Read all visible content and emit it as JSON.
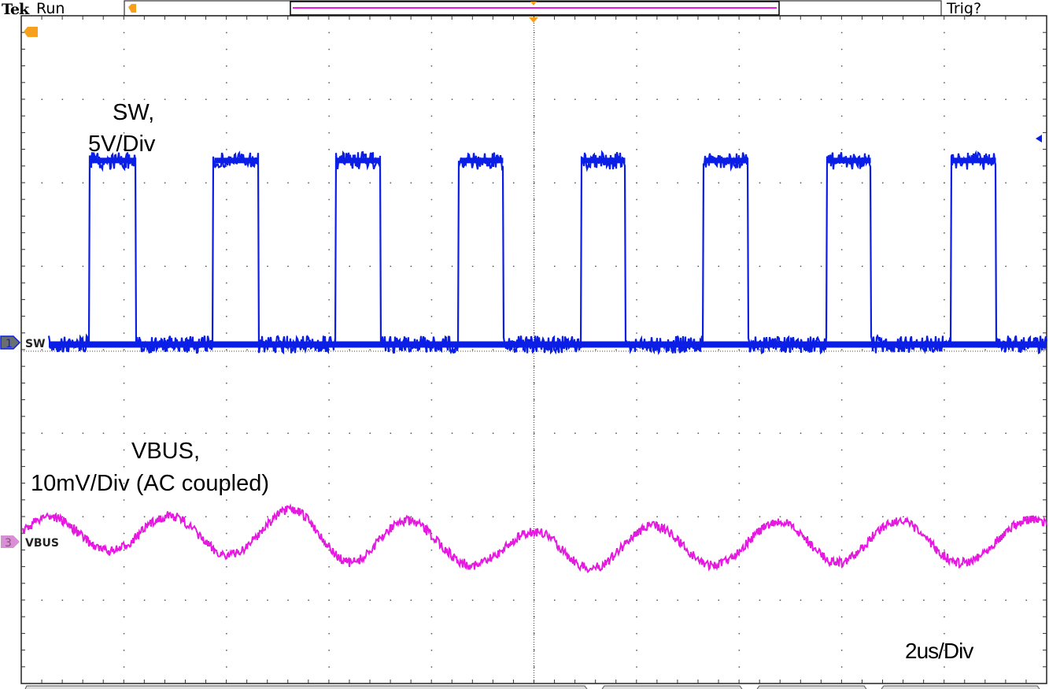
{
  "header": {
    "brand": "Tek",
    "status": "Run",
    "trigger_status": "Trig?"
  },
  "colors": {
    "ch1": "#0a1ee6",
    "ch3": "#e619e0",
    "trigger": "#f7a01e",
    "grid": "#444444"
  },
  "chart_data": {
    "type": "line",
    "xlim": [
      -10,
      10
    ],
    "x_unit": "us",
    "divisions": {
      "horizontal": 10,
      "vertical": 8
    },
    "grid": true,
    "annotations": {
      "sw": [
        "SW,",
        "5V/Div"
      ],
      "vbus": [
        "VBUS,",
        "10mV/Div (AC coupled)"
      ],
      "timebase": "2us/Div"
    },
    "series": [
      {
        "name": "SW",
        "channel": "1",
        "scale_per_div": 5,
        "unit": "V",
        "low": 0.4,
        "high": 11.4,
        "rise_times": [
          -8.67,
          -6.26,
          -3.87,
          -1.47,
          0.92,
          3.3,
          5.71,
          8.14
        ],
        "fall_times": [
          -7.77,
          -5.37,
          -2.99,
          -0.6,
          1.78,
          4.18,
          6.57,
          9.01
        ]
      },
      {
        "name": "VBUS",
        "channel": "3",
        "scale_per_div": 10,
        "unit": "mV",
        "x": [
          -10,
          -9.49,
          -8.26,
          -7.11,
          -5.96,
          -4.73,
          -3.58,
          -2.5,
          -1.2,
          0.03,
          1.1,
          2.33,
          3.48,
          4.79,
          5.94,
          7.09,
          8.32,
          9.7,
          10
        ],
        "y": [
          1.5,
          3.1,
          -1.1,
          3.1,
          -1.6,
          3.8,
          -2.5,
          2.5,
          -2.8,
          1.2,
          -3.2,
          1.9,
          -2.8,
          2.3,
          -2.5,
          2.5,
          -2.5,
          2.6,
          2.4
        ]
      }
    ]
  }
}
